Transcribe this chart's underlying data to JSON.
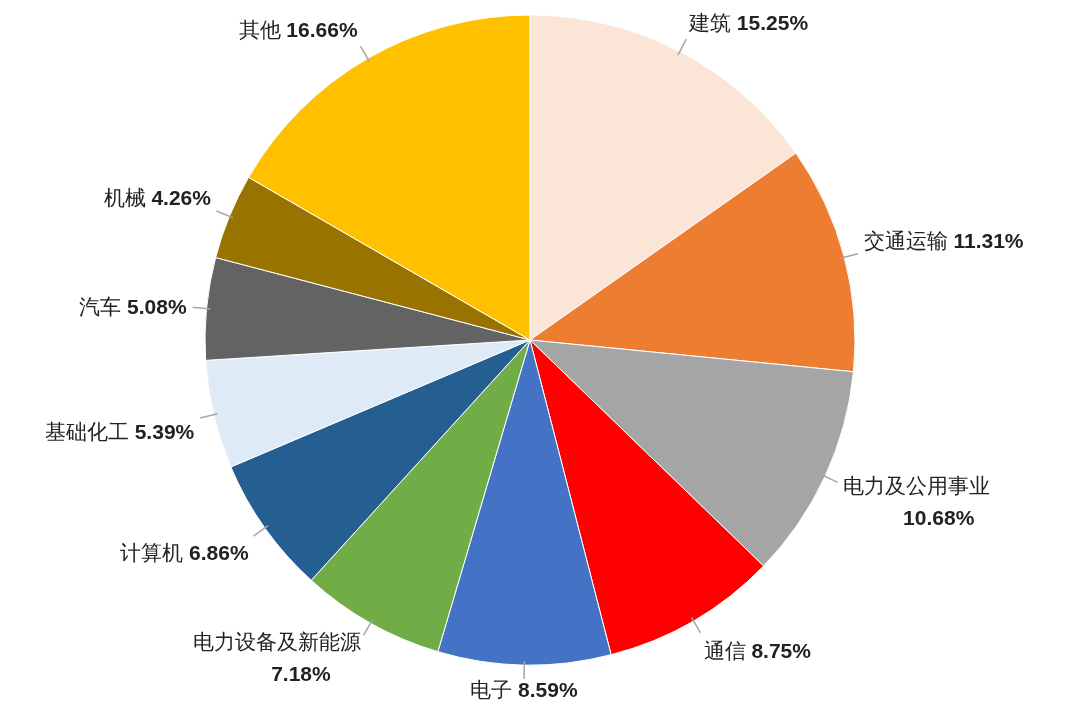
{
  "chart_data": {
    "type": "pie",
    "categories": [
      "建筑",
      "交通运输",
      "电力及公用事业",
      "通信",
      "电子",
      "电力设备及新能源",
      "计算机",
      "基础化工",
      "汽车",
      "机械",
      "其他"
    ],
    "values": [
      15.25,
      11.31,
      10.68,
      8.75,
      8.59,
      7.18,
      6.86,
      5.39,
      5.08,
      4.26,
      16.66
    ],
    "value_labels": [
      "15.25%",
      "11.31%",
      "10.68%",
      "8.75%",
      "8.59%",
      "7.18%",
      "6.86%",
      "5.39%",
      "5.08%",
      "4.26%",
      "16.66%"
    ],
    "colors": [
      "#fbe5d6",
      "#ed7d31",
      "#a5a5a5",
      "#ff0000",
      "#4472c4",
      "#70ad47",
      "#255e91",
      "#deebf7",
      "#636363",
      "#997300",
      "#ffc000"
    ]
  }
}
